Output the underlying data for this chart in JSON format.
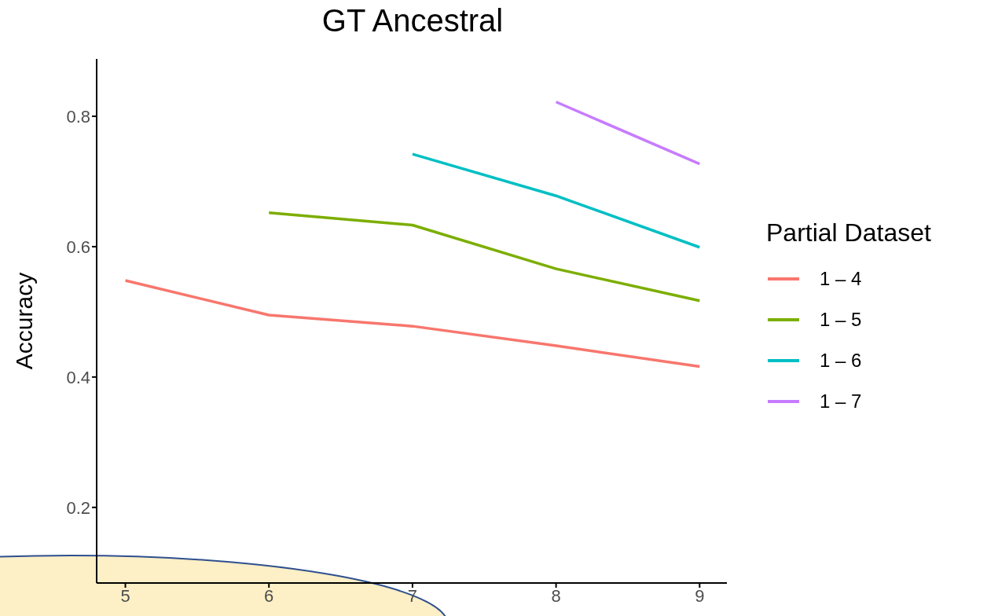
{
  "chart_data": {
    "type": "line",
    "title": "GT Ancestral",
    "ylabel": "Accuracy",
    "legend_title": "Partial Dataset",
    "x": [
      5,
      6,
      7,
      8,
      9
    ],
    "series": [
      {
        "name": "1 – 4",
        "color": "#f8766d",
        "values": [
          0.548,
          0.495,
          0.478,
          0.448,
          0.416
        ]
      },
      {
        "name": "1 – 5",
        "color": "#7cae00",
        "values": [
          null,
          0.652,
          0.633,
          0.566,
          0.517
        ]
      },
      {
        "name": "1 – 6",
        "color": "#00bfc4",
        "values": [
          null,
          null,
          0.742,
          0.678,
          0.599
        ]
      },
      {
        "name": "1 – 7",
        "color": "#c77cff",
        "values": [
          null,
          null,
          null,
          0.822,
          0.727
        ]
      }
    ],
    "xlim": [
      4.8,
      9.19
    ],
    "xticks": [
      5,
      6,
      7,
      8,
      9
    ],
    "ylim": [
      0.084,
      0.888
    ],
    "yticks": [
      0.2,
      0.4,
      0.6,
      0.8
    ],
    "grid": false,
    "legend": "right",
    "marker": "none",
    "line_style": "solid"
  }
}
